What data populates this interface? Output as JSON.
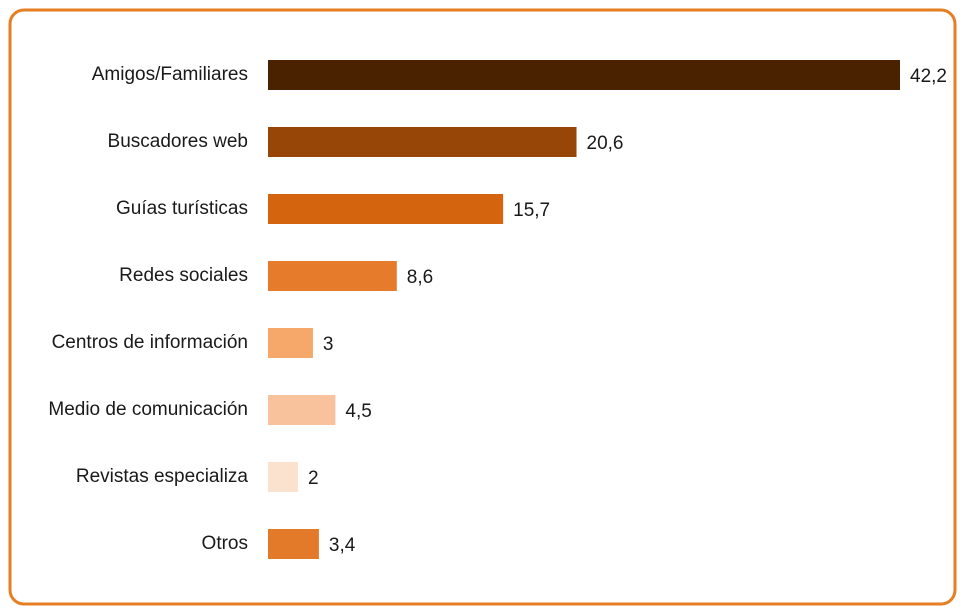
{
  "chart_data": {
    "type": "bar",
    "orientation": "horizontal",
    "categories": [
      "Amigos/Familiares",
      "Buscadores web",
      "Guías turísticas",
      "Redes sociales",
      "Centros de información",
      "Medio de comunicación",
      "Revistas especializa",
      "Otros"
    ],
    "values": [
      42.2,
      20.6,
      15.7,
      8.6,
      3,
      4.5,
      2,
      3.4
    ],
    "value_labels": [
      "42,2",
      "20,6",
      "15,7",
      "8,6",
      "3",
      "4,5",
      "2",
      "3,4"
    ],
    "colors": [
      "#4a2200",
      "#974607",
      "#d4640e",
      "#e57b2b",
      "#f6a86b",
      "#f8c39c",
      "#fbe2cf",
      "#e37a29"
    ]
  }
}
